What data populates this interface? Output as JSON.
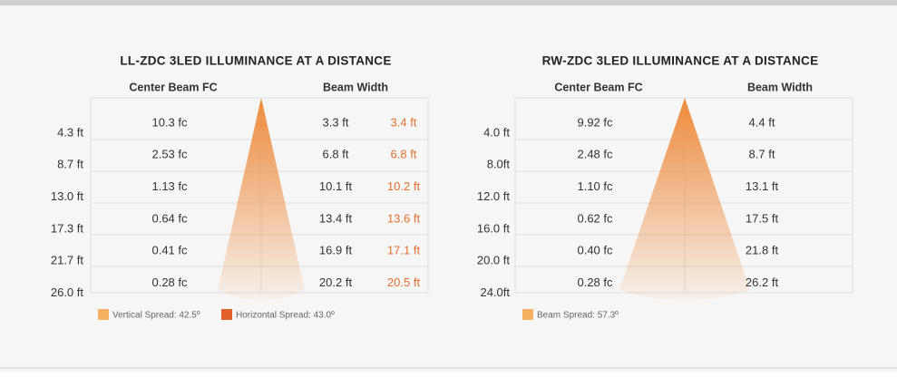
{
  "panels": [
    {
      "title": "LL-ZDC 3LED ILLUMINANCE AT A DISTANCE",
      "headers": [
        "Center Beam FC",
        "Beam Width"
      ],
      "distances": [
        "4.3 ft",
        "8.7 ft",
        "13.0 ft",
        "17.3 ft",
        "21.7 ft",
        "26.0 ft"
      ],
      "rows": [
        [
          "10.3 fc",
          "3.3 ft",
          "3.4 ft"
        ],
        [
          "2.53 fc",
          "6.8 ft",
          "6.8 ft"
        ],
        [
          "1.13 fc",
          "10.1 ft",
          "10.2 ft"
        ],
        [
          "0.64 fc",
          "13.4 ft",
          "13.6 ft"
        ],
        [
          "0.41 fc",
          "16.9 ft",
          "17.1 ft"
        ],
        [
          "0.28 fc",
          "20.2 ft",
          "20.5 ft"
        ]
      ],
      "legend": [
        "Vertical Spread: 42.5º",
        "Horizontal Spread: 43.0º"
      ]
    },
    {
      "title": "RW-ZDC 3LED ILLUMINANCE AT A DISTANCE",
      "headers": [
        "Center Beam FC",
        "Beam Width"
      ],
      "distances": [
        "4.0 ft",
        "8.0ft",
        "12.0 ft",
        "16.0 ft",
        "20.0 ft",
        "24.0ft"
      ],
      "rows": [
        [
          "9.92 fc",
          "4.4 ft"
        ],
        [
          "2.48 fc",
          "8.7 ft"
        ],
        [
          "1.10 fc",
          "13.1 ft"
        ],
        [
          "0.62 fc",
          "17.5 ft"
        ],
        [
          "0.40 fc",
          "21.8 ft"
        ],
        [
          "0.28 fc",
          "26.2 ft"
        ]
      ],
      "legend": [
        "Beam Spread: 57.3º"
      ]
    }
  ]
}
